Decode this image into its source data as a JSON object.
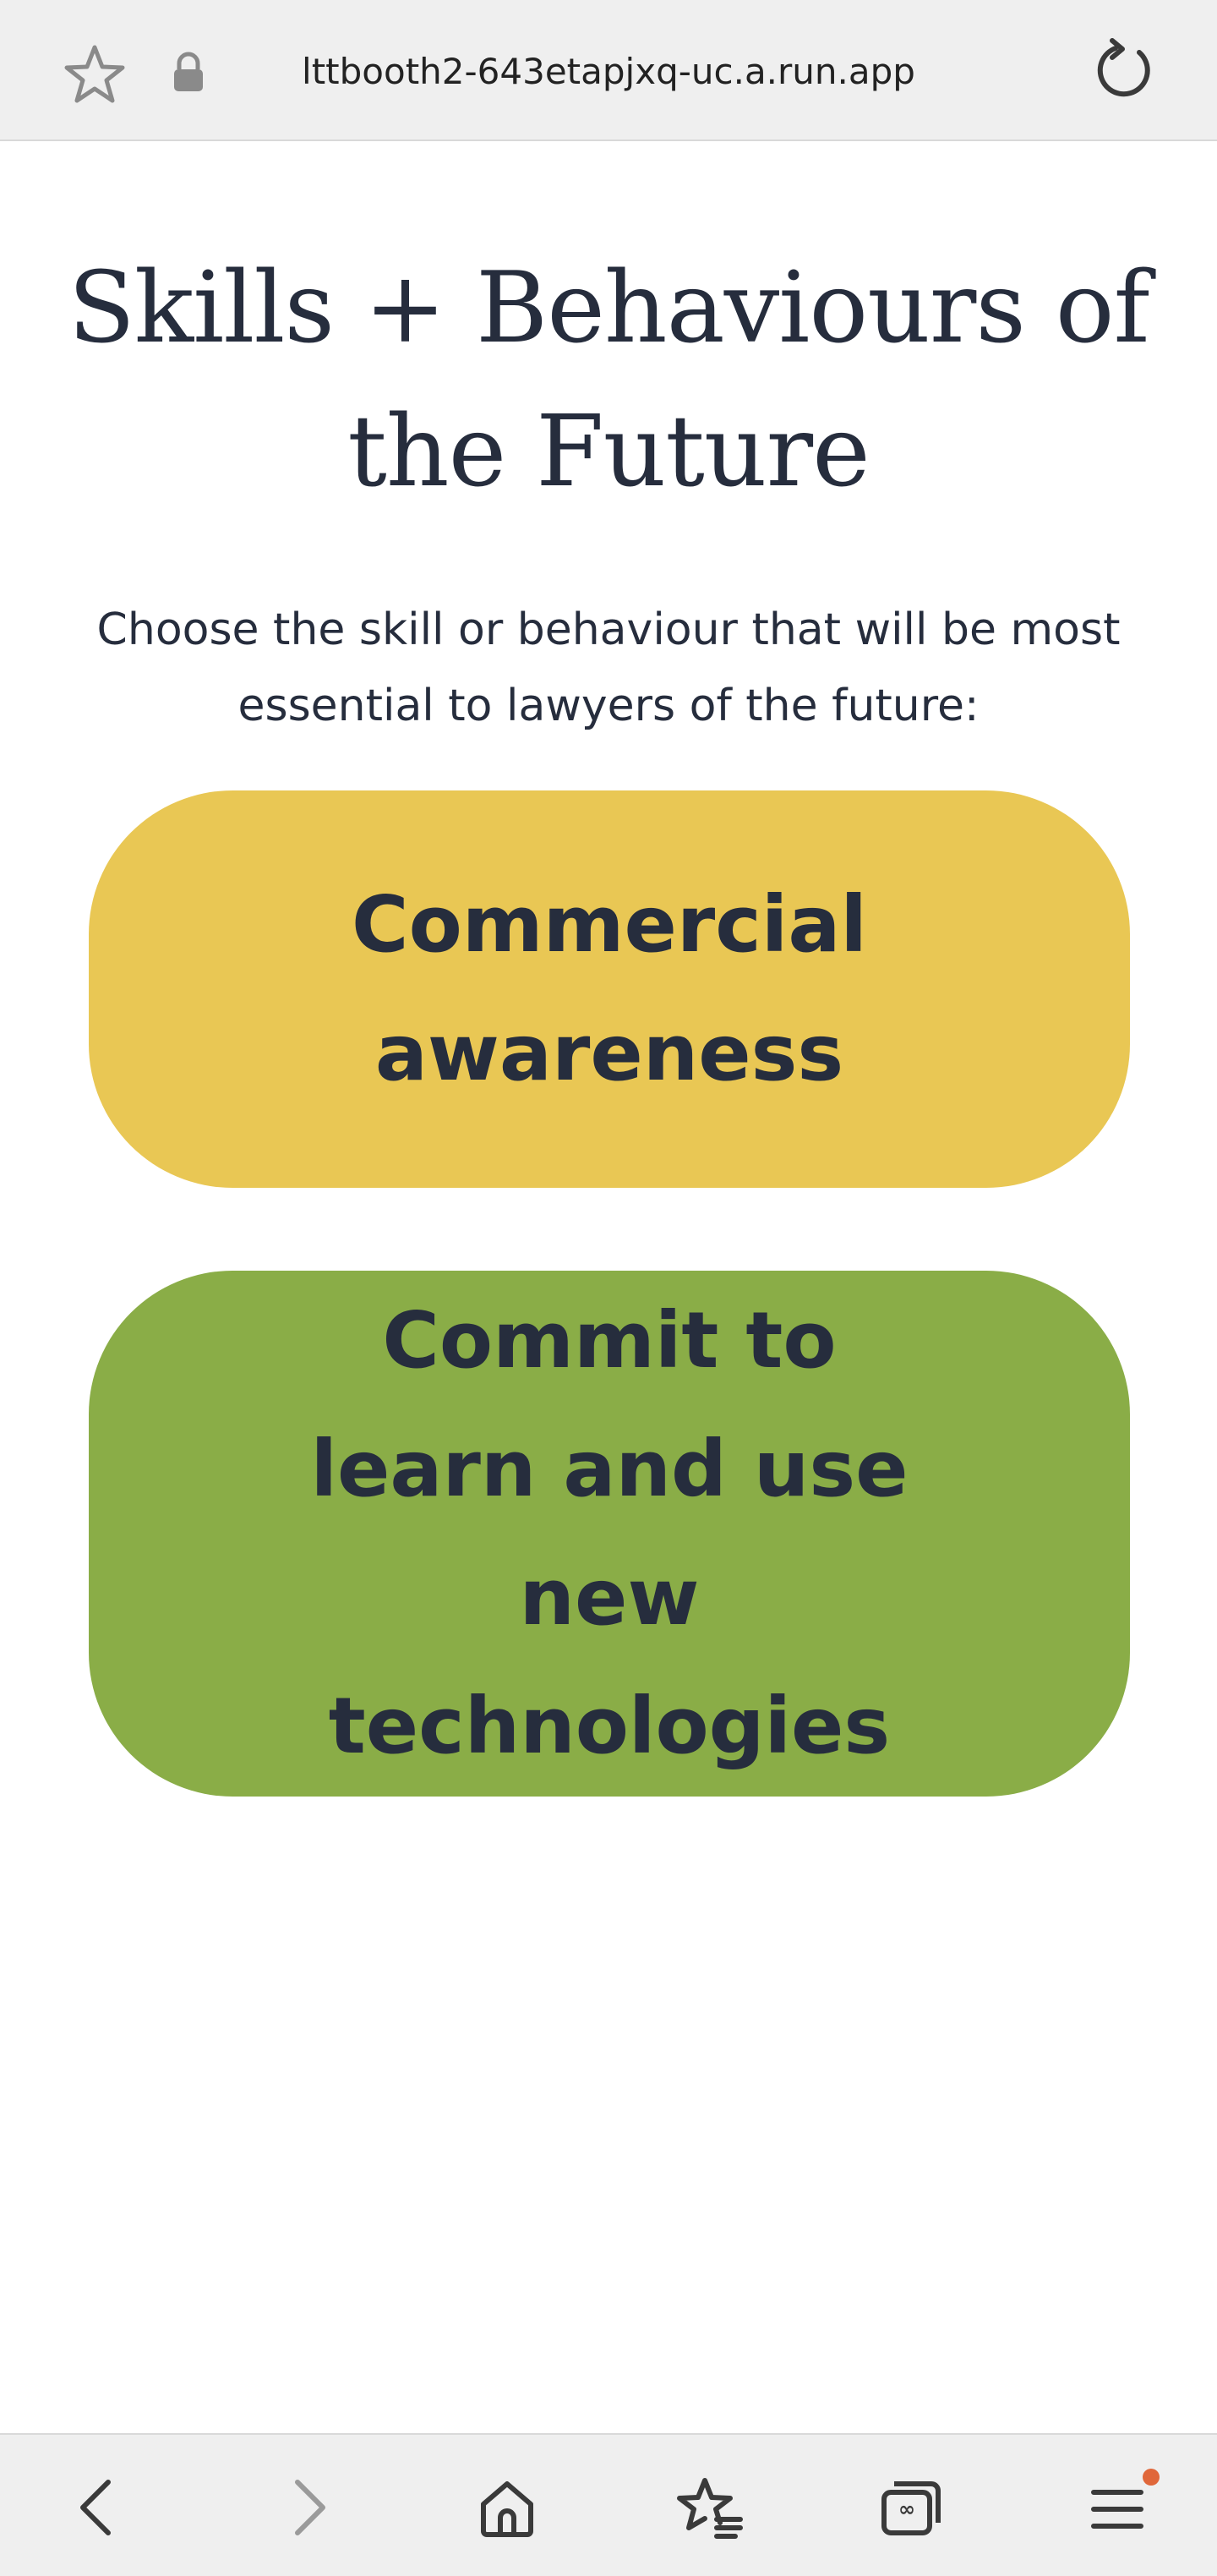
{
  "browser": {
    "url": "lttbooth2-643etapjxq-uc.a.run.app"
  },
  "main": {
    "title": "Skills + Behaviours of the Future",
    "prompt": "Choose the skill or behaviour that will be most essential to lawyers of the future:",
    "options": [
      {
        "label": "Commercial awareness",
        "color": "#e9c754"
      },
      {
        "label": "Commit to learn and use new technologies",
        "color": "#8aad47"
      }
    ]
  },
  "icons": {
    "top": [
      "star-icon",
      "lock-icon",
      "reload-icon"
    ],
    "bottom": [
      "back-icon",
      "forward-icon",
      "home-icon",
      "bookmarks-icon",
      "tabs-icon",
      "menu-icon"
    ]
  },
  "colors": {
    "text": "#262d3d",
    "bar": "#efefef",
    "notification": "#e0673a"
  }
}
